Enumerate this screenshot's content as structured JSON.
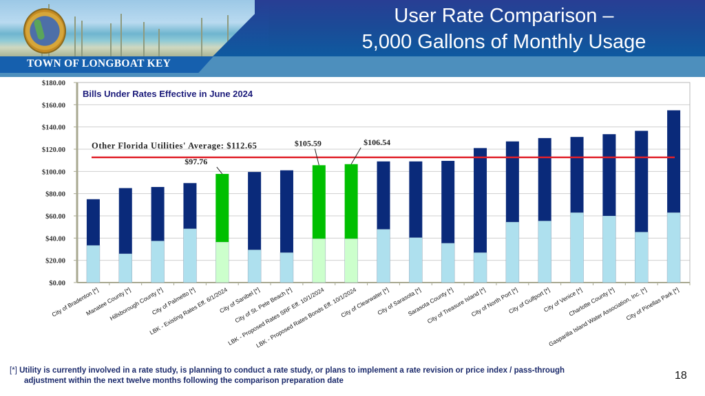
{
  "header": {
    "town_name": "TOWN OF LONGBOAT KEY",
    "title_line1": "User Rate Comparison –",
    "title_line2": "5,000 Gallons of Monthly Usage",
    "logo": "town-seal-icon"
  },
  "chart_data": {
    "type": "bar",
    "stacked": true,
    "title": "Bills Under Rates Effective in June 2024",
    "xlabel": "",
    "ylabel": "",
    "ylim": [
      0,
      180
    ],
    "yticks": [
      0,
      20,
      40,
      60,
      80,
      100,
      120,
      140,
      160,
      180
    ],
    "ytick_labels": [
      "$0.00",
      "$20.00",
      "$40.00",
      "$60.00",
      "$80.00",
      "$100.00",
      "$120.00",
      "$140.00",
      "$160.00",
      "$180.00"
    ],
    "grid": true,
    "categories": [
      "City of Bradenton [*]",
      "Manatee County [*]",
      "Hillsborough County [*]",
      "City of Palmetto [*]",
      "LBK - Existing Rates Eff. 6/1/2024",
      "City of Sanibel [*]",
      "City of St. Pete Beach [*]",
      "LBK - Proposed Rates SRF Eff. 10/1/2024",
      "LBK - Proposed Rates Bonds Eff. 10/1/2024",
      "City of Clearwater [*]",
      "City of Sarasota [*]",
      "Sarasota County [*]",
      "City of Treasure Island [*]",
      "City of North Port [*]",
      "City of Gulfport [*]",
      "City of Venice [*]",
      "Charlotte County [*]",
      "Gasparilla Island Water Association, Inc. [*]",
      "City of Pinellas Park [*]"
    ],
    "highlight": [
      false,
      false,
      false,
      false,
      true,
      false,
      false,
      true,
      true,
      false,
      false,
      false,
      false,
      false,
      false,
      false,
      false,
      false,
      false
    ],
    "series": [
      {
        "name": "Lower segment",
        "values": [
          33.5,
          26,
          37.5,
          48.5,
          36.5,
          29.5,
          27,
          39.5,
          39.5,
          48,
          40.5,
          35.5,
          27,
          54.5,
          55.5,
          63,
          60,
          45.5,
          63
        ]
      },
      {
        "name": "Upper segment",
        "values": [
          41.5,
          59,
          48.5,
          41,
          61.26,
          70,
          74,
          66.09,
          67.04,
          61,
          68.5,
          74,
          94,
          72.5,
          74.5,
          68,
          73.5,
          91,
          92
        ]
      }
    ],
    "totals": [
      75,
      85,
      86,
      89.5,
      97.76,
      99.5,
      101,
      105.59,
      106.54,
      109,
      109,
      109.5,
      121,
      127,
      130,
      131,
      133.5,
      136.5,
      155
    ],
    "reference_line": {
      "label": "Other Florida Utilities' Average: $112.65",
      "value": 112.65
    },
    "annotations": [
      {
        "category_index": 4,
        "text": "$97.76"
      },
      {
        "category_index": 7,
        "text": "$105.59"
      },
      {
        "category_index": 8,
        "text": "$106.54"
      }
    ],
    "colors": {
      "upper": "#0a2a7a",
      "lower": "#aee0ee",
      "upper_highlight": "#00bf00",
      "lower_highlight": "#ccffcc",
      "reference": "#e0202a",
      "title": "#1b1b7a"
    }
  },
  "footnote": {
    "marker": "[*]",
    "line1": "Utility is currently involved in a rate study, is planning to conduct a rate study, or plans to implement a rate revision or price index / pass-through",
    "line2": "adjustment within the next twelve months following the comparison preparation date"
  },
  "page_number": "18"
}
